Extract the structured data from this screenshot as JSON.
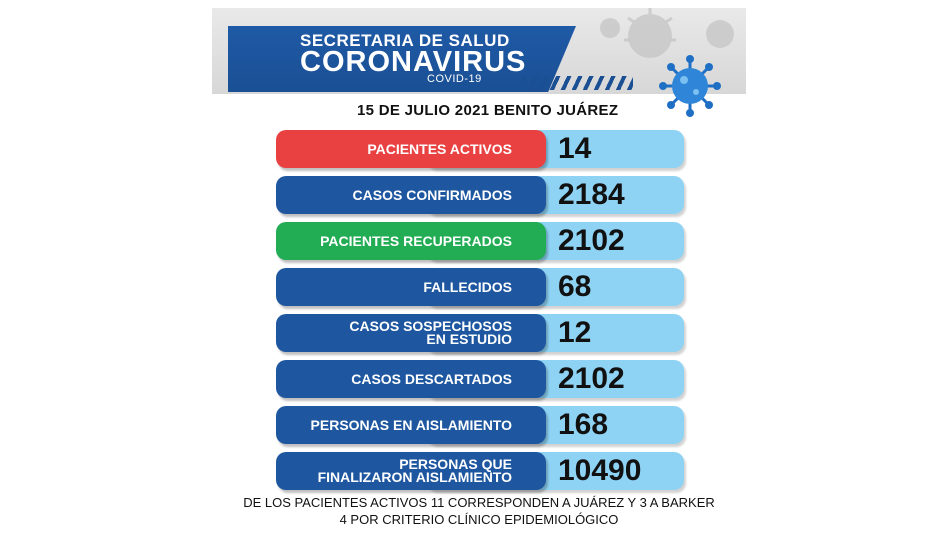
{
  "header": {
    "line1": "SECRETARIA DE SALUD",
    "line2": "CORONAVIRUS",
    "line3": "COVID-19"
  },
  "date_line": "15 DE JULIO 2021 BENITO JUÁREZ",
  "rows": [
    {
      "label": "PACIENTES ACTIVOS",
      "value": "14",
      "color": "#e94141"
    },
    {
      "label": "CASOS CONFIRMADOS",
      "value": "2184",
      "color": "#1e57a0"
    },
    {
      "label": "PACIENTES RECUPERADOS",
      "value": "2102",
      "color": "#22ad55"
    },
    {
      "label": "FALLECIDOS",
      "value": "68",
      "color": "#1e57a0"
    },
    {
      "label": "CASOS SOSPECHOSOS\nEN ESTUDIO",
      "value": "12",
      "color": "#1e57a0"
    },
    {
      "label": "CASOS DESCARTADOS",
      "value": "2102",
      "color": "#1e57a0"
    },
    {
      "label": "PERSONAS EN AISLAMIENTO",
      "value": "168",
      "color": "#1e57a0"
    },
    {
      "label": "PERSONAS QUE\nFINALIZARON AISLAMIENTO",
      "value": "10490",
      "color": "#1e57a0"
    }
  ],
  "footer": {
    "line1": "DE LOS PACIENTES ACTIVOS  11 CORRESPONDEN A JUÁREZ Y 3 A BARKER",
    "line2": "4 POR CRITERIO CLÍNICO EPIDEMIOLÓGICO"
  },
  "icons": {
    "virus": "virus-icon"
  }
}
